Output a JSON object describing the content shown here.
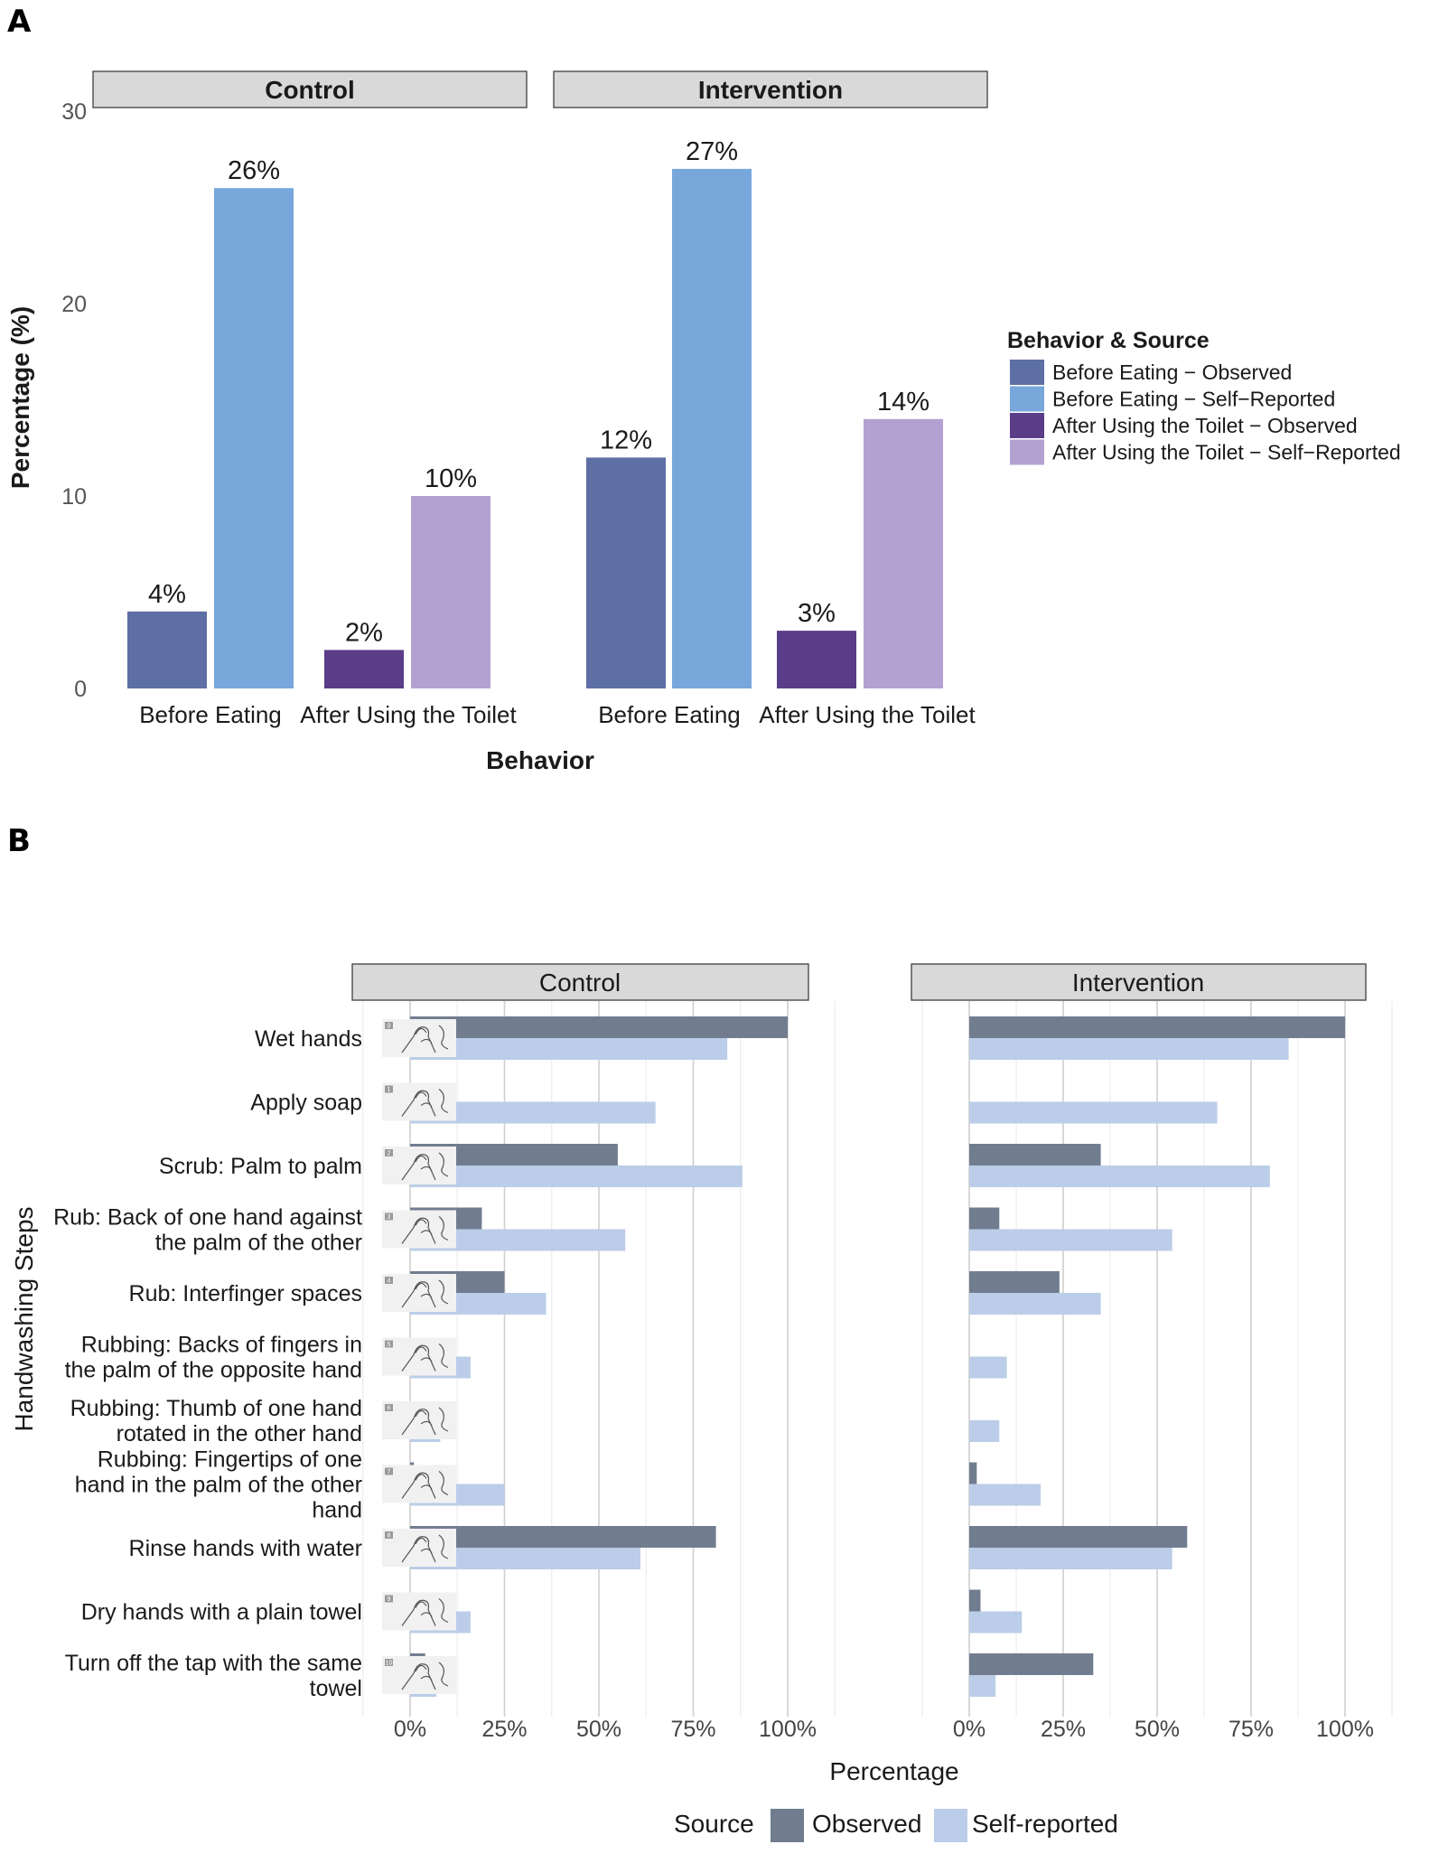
{
  "panel_letters": {
    "a": "A",
    "b": "B"
  },
  "chart_data": [
    {
      "type": "bar",
      "panel": "A",
      "facets": [
        "Control",
        "Intervention"
      ],
      "categories": [
        "Before Eating",
        "After Using the Toilet"
      ],
      "series": [
        {
          "name": "Before Eating − Observed",
          "category": "Before Eating",
          "source": "Observed",
          "color": "#5E6FA5",
          "values": [
            4,
            12
          ],
          "labels": [
            "4%",
            "12%"
          ]
        },
        {
          "name": "Before Eating − Self−Reported",
          "category": "Before Eating",
          "source": "Self-Reported",
          "color": "#77A7DB",
          "values": [
            26,
            27
          ],
          "labels": [
            "26%",
            "27%"
          ]
        },
        {
          "name": "After Using the Toilet − Observed",
          "category": "After Using the Toilet",
          "source": "Observed",
          "color": "#5A3D88",
          "values": [
            2,
            3
          ],
          "labels": [
            "2%",
            "3%"
          ]
        },
        {
          "name": "After Using the Toilet − Self−Reported",
          "category": "After Using the Toilet",
          "source": "Self-Reported",
          "color": "#B3A2D1",
          "values": [
            10,
            14
          ],
          "labels": [
            "10%",
            "14%"
          ]
        }
      ],
      "xlabel": "Behavior",
      "ylabel": "Percentage (%)",
      "ylim": [
        0,
        30
      ],
      "yticks": [
        0,
        10,
        20,
        30
      ],
      "legend": {
        "title": "Behavior & Source",
        "position": "right"
      },
      "grid": false
    },
    {
      "type": "bar",
      "orientation": "horizontal",
      "panel": "B",
      "facets": [
        "Control",
        "Intervention"
      ],
      "categories": [
        "Wet hands",
        "Apply soap",
        "Scrub: Palm to palm",
        "Rub: Back of one hand against the palm of the other",
        "Rub: Interfinger spaces",
        "Rubbing: Backs of fingers in the palm of the opposite hand",
        "Rubbing: Thumb of one hand rotated in the other hand",
        "Rubbing: Fingertips of one hand in the palm of the other hand",
        "Rinse hands with water",
        "Dry hands with a plain towel",
        "Turn off the tap with the same towel"
      ],
      "category_lines": [
        [
          "Wet hands"
        ],
        [
          "Apply soap"
        ],
        [
          "Scrub: Palm to palm"
        ],
        [
          "Rub: Back of one hand against",
          "the palm of the other"
        ],
        [
          "Rub: Interfinger spaces"
        ],
        [
          "Rubbing: Backs of fingers in",
          "the palm of the opposite hand"
        ],
        [
          "Rubbing: Thumb of one hand",
          "rotated in the other hand"
        ],
        [
          "Rubbing: Fingertips of one",
          "hand in the palm of the other",
          "hand"
        ],
        [
          "Rinse hands with water"
        ],
        [
          "Dry hands with a plain towel"
        ],
        [
          "Turn off the tap with the same",
          "towel"
        ]
      ],
      "step_numbers": [
        "0",
        "1",
        "2",
        "3",
        "4",
        "5",
        "6",
        "7",
        "8",
        "9",
        "10"
      ],
      "series": [
        {
          "name": "Observed",
          "color": "#717D8F",
          "control": [
            100,
            0,
            55,
            19,
            25,
            0,
            0,
            1,
            81,
            0,
            4
          ],
          "intervention": [
            100,
            0,
            35,
            8,
            24,
            0,
            0,
            2,
            58,
            3,
            33
          ]
        },
        {
          "name": "Self-reported",
          "color": "#BBCDE8",
          "control": [
            84,
            65,
            88,
            57,
            36,
            16,
            8,
            25,
            61,
            16,
            7
          ],
          "intervention": [
            85,
            66,
            80,
            54,
            35,
            10,
            8,
            19,
            54,
            14,
            7
          ]
        }
      ],
      "xlabel": "Percentage",
      "ylabel": "Handwashing Steps",
      "xlim": [
        0,
        100
      ],
      "xticks": [
        "0%",
        "25%",
        "50%",
        "75%",
        "100%"
      ],
      "legend": {
        "title": "Source",
        "position": "bottom",
        "items": [
          "Observed",
          "Self-reported"
        ]
      },
      "grid": true
    }
  ]
}
